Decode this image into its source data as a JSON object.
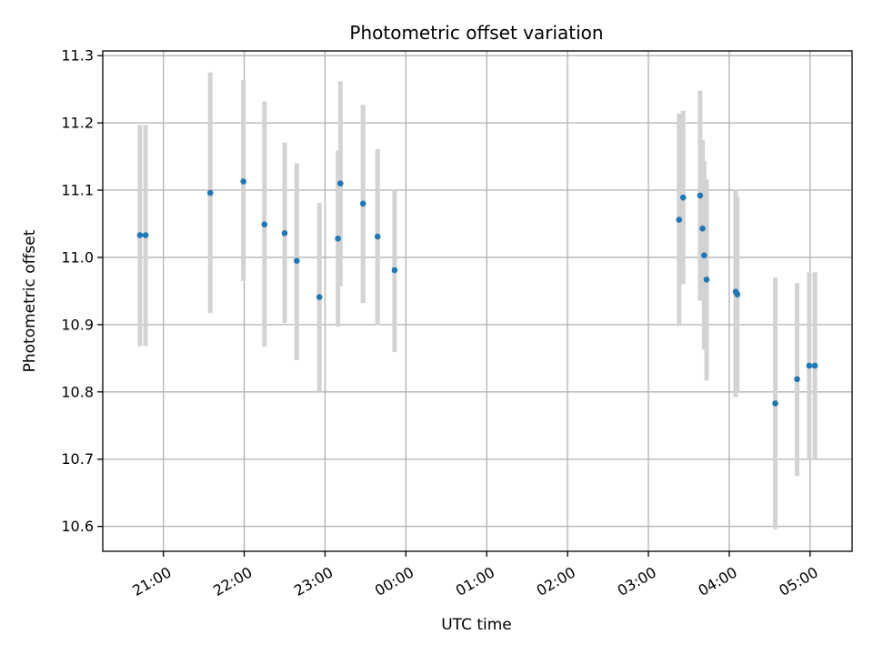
{
  "chart_data": {
    "type": "scatter",
    "title": "Photometric offset variation",
    "xlabel": "UTC time",
    "ylabel": "Photometric offset",
    "x_unit": "hours since 20:00 UTC",
    "xlim": [
      0.25,
      9.52
    ],
    "ylim": [
      10.563,
      11.307
    ],
    "grid": true,
    "colors": {
      "point": "#1f77b4",
      "errorbar": "#d3d3d3",
      "grid": "#b0b0b0"
    },
    "xticks": [
      {
        "value": 1,
        "label": "21:00"
      },
      {
        "value": 2,
        "label": "22:00"
      },
      {
        "value": 3,
        "label": "23:00"
      },
      {
        "value": 4,
        "label": "00:00"
      },
      {
        "value": 5,
        "label": "01:00"
      },
      {
        "value": 6,
        "label": "02:00"
      },
      {
        "value": 7,
        "label": "03:00"
      },
      {
        "value": 8,
        "label": "04:00"
      },
      {
        "value": 9,
        "label": "05:00"
      }
    ],
    "yticks": [
      {
        "value": 10.6,
        "label": "10.6"
      },
      {
        "value": 10.7,
        "label": "10.7"
      },
      {
        "value": 10.8,
        "label": "10.8"
      },
      {
        "value": 10.9,
        "label": "10.9"
      },
      {
        "value": 11.0,
        "label": "11.0"
      },
      {
        "value": 11.1,
        "label": "11.1"
      },
      {
        "value": 11.2,
        "label": "11.2"
      },
      {
        "value": 11.3,
        "label": "11.3"
      }
    ],
    "points": [
      {
        "x": 0.71,
        "y": 11.033,
        "lo": 10.868,
        "hi": 11.197
      },
      {
        "x": 0.78,
        "y": 11.033,
        "lo": 10.868,
        "hi": 11.197
      },
      {
        "x": 1.58,
        "y": 11.096,
        "lo": 10.917,
        "hi": 11.275
      },
      {
        "x": 1.99,
        "y": 11.113,
        "lo": 10.965,
        "hi": 11.264
      },
      {
        "x": 2.25,
        "y": 11.049,
        "lo": 10.867,
        "hi": 11.232
      },
      {
        "x": 2.5,
        "y": 11.036,
        "lo": 10.902,
        "hi": 11.171
      },
      {
        "x": 2.65,
        "y": 10.995,
        "lo": 10.847,
        "hi": 11.14
      },
      {
        "x": 2.93,
        "y": 10.941,
        "lo": 10.8,
        "hi": 11.081
      },
      {
        "x": 3.16,
        "y": 11.028,
        "lo": 10.897,
        "hi": 11.159
      },
      {
        "x": 3.19,
        "y": 11.11,
        "lo": 10.957,
        "hi": 11.262
      },
      {
        "x": 3.47,
        "y": 11.08,
        "lo": 10.932,
        "hi": 11.227
      },
      {
        "x": 3.65,
        "y": 11.031,
        "lo": 10.899,
        "hi": 11.161
      },
      {
        "x": 3.86,
        "y": 10.981,
        "lo": 10.859,
        "hi": 11.1
      },
      {
        "x": 7.38,
        "y": 11.056,
        "lo": 10.898,
        "hi": 11.214
      },
      {
        "x": 7.43,
        "y": 11.089,
        "lo": 10.96,
        "hi": 11.218
      },
      {
        "x": 7.64,
        "y": 11.092,
        "lo": 10.936,
        "hi": 11.248
      },
      {
        "x": 7.67,
        "y": 11.043,
        "lo": 10.935,
        "hi": 11.175
      },
      {
        "x": 7.69,
        "y": 11.003,
        "lo": 10.863,
        "hi": 11.143
      },
      {
        "x": 7.72,
        "y": 10.967,
        "lo": 10.817,
        "hi": 11.116
      },
      {
        "x": 8.08,
        "y": 10.949,
        "lo": 10.792,
        "hi": 11.101
      },
      {
        "x": 8.1,
        "y": 10.945,
        "lo": 10.8,
        "hi": 11.09
      },
      {
        "x": 8.57,
        "y": 10.783,
        "lo": 10.596,
        "hi": 10.97
      },
      {
        "x": 8.84,
        "y": 10.819,
        "lo": 10.675,
        "hi": 10.962
      },
      {
        "x": 8.99,
        "y": 10.839,
        "lo": 10.7,
        "hi": 10.978
      },
      {
        "x": 9.06,
        "y": 10.839,
        "lo": 10.7,
        "hi": 10.978
      }
    ]
  }
}
